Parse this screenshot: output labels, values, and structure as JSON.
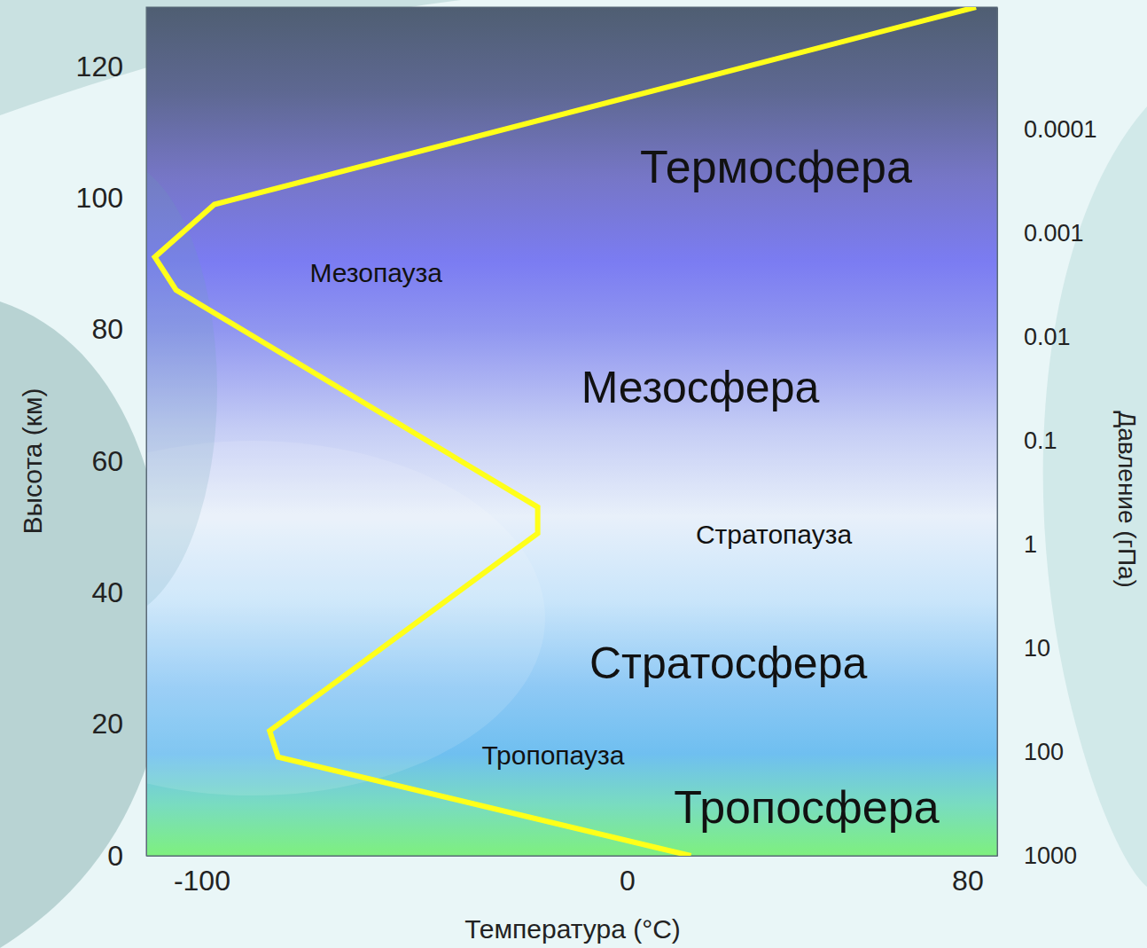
{
  "chart_data": {
    "type": "line",
    "x": [
      15,
      -82,
      -84,
      -21,
      -21,
      -106,
      -111,
      -97,
      82
    ],
    "values": [
      0,
      15,
      19,
      49,
      53,
      86,
      91,
      99,
      129
    ],
    "color": "#ffff1a",
    "xlabel": "Температура (°C)",
    "ylabel": "Высота (км)",
    "y2label": "Давление (гПа)",
    "xlim": [
      -113,
      87
    ],
    "xticks": [
      -100,
      0,
      80
    ],
    "ylim": [
      0,
      129
    ],
    "yticks": [
      0,
      20,
      40,
      60,
      80,
      100,
      120
    ],
    "y2lim": [
      1000,
      6.6e-06
    ],
    "y2ticks": [
      1000,
      100,
      10,
      1,
      0.1,
      0.01,
      0.001,
      0.0001
    ],
    "log": "y2",
    "annotations": [
      "Термосфера",
      "Мезопауза",
      "Мезосфера",
      "Стратопауза",
      "Стратосфера",
      "Тропопауза",
      "Тропосфера"
    ]
  }
}
